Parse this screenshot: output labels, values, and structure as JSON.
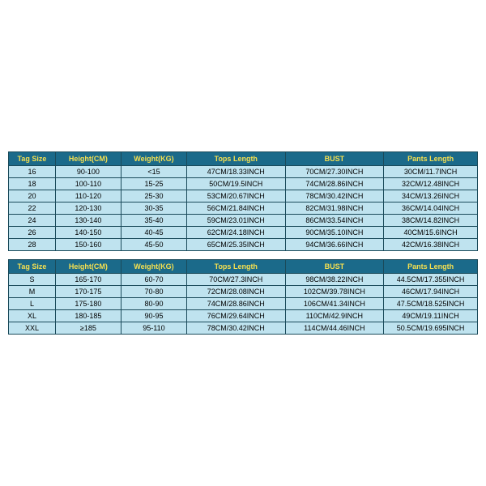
{
  "colors": {
    "header_bg": "#1b6a8a",
    "header_text": "#f5e050",
    "row_bg": "#bfe3ef",
    "row_text": "#000000",
    "border": "#1a4a5a",
    "page_bg": "#ffffff"
  },
  "typography": {
    "font_family": "Arial, sans-serif",
    "cell_fontsize": 9,
    "header_fontweight": "bold"
  },
  "columns": [
    {
      "key": "tag",
      "label": "Tag Size",
      "width": "10%"
    },
    {
      "key": "height",
      "label": "Height(CM)",
      "width": "14%"
    },
    {
      "key": "weight",
      "label": "Weight(KG)",
      "width": "14%"
    },
    {
      "key": "tops",
      "label": "Tops Length",
      "width": "21%"
    },
    {
      "key": "bust",
      "label": "BUST",
      "width": "21%"
    },
    {
      "key": "pants",
      "label": "Pants Length",
      "width": "20%"
    }
  ],
  "table1": {
    "rows": [
      {
        "tag": "16",
        "height": "90-100",
        "weight": "<15",
        "tops": "47CM/18.33INCH",
        "bust": "70CM/27.30INCH",
        "pants": "30CM/11.7INCH"
      },
      {
        "tag": "18",
        "height": "100-110",
        "weight": "15-25",
        "tops": "50CM/19.5INCH",
        "bust": "74CM/28.86INCH",
        "pants": "32CM/12.48INCH"
      },
      {
        "tag": "20",
        "height": "110-120",
        "weight": "25-30",
        "tops": "53CM/20.67INCH",
        "bust": "78CM/30.42INCH",
        "pants": "34CM/13.26INCH"
      },
      {
        "tag": "22",
        "height": "120-130",
        "weight": "30-35",
        "tops": "56CM/21.84INCH",
        "bust": "82CM/31.98INCH",
        "pants": "36CM/14.04INCH"
      },
      {
        "tag": "24",
        "height": "130-140",
        "weight": "35-40",
        "tops": "59CM/23.01INCH",
        "bust": "86CM/33.54INCH",
        "pants": "38CM/14.82INCH"
      },
      {
        "tag": "26",
        "height": "140-150",
        "weight": "40-45",
        "tops": "62CM/24.18INCH",
        "bust": "90CM/35.10INCH",
        "pants": "40CM/15.6INCH"
      },
      {
        "tag": "28",
        "height": "150-160",
        "weight": "45-50",
        "tops": "65CM/25.35INCH",
        "bust": "94CM/36.66INCH",
        "pants": "42CM/16.38INCH"
      }
    ]
  },
  "table2": {
    "rows": [
      {
        "tag": "S",
        "height": "165-170",
        "weight": "60-70",
        "tops": "70CM/27.3INCH",
        "bust": "98CM/38.22INCH",
        "pants": "44.5CM/17.355INCH"
      },
      {
        "tag": "M",
        "height": "170-175",
        "weight": "70-80",
        "tops": "72CM/28.08INCH",
        "bust": "102CM/39.78INCH",
        "pants": "46CM/17.94INCH"
      },
      {
        "tag": "L",
        "height": "175-180",
        "weight": "80-90",
        "tops": "74CM/28.86INCH",
        "bust": "106CM/41.34INCH",
        "pants": "47.5CM/18.525INCH"
      },
      {
        "tag": "XL",
        "height": "180-185",
        "weight": "90-95",
        "tops": "76CM/29.64INCH",
        "bust": "110CM/42.9INCH",
        "pants": "49CM/19.11INCH"
      },
      {
        "tag": "XXL",
        "height": "≥185",
        "weight": "95-110",
        "tops": "78CM/30.42INCH",
        "bust": "114CM/44.46INCH",
        "pants": "50.5CM/19.695INCH"
      }
    ]
  }
}
